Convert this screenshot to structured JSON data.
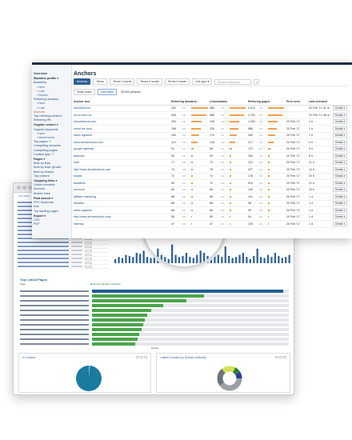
{
  "sidebar": {
    "items": [
      {
        "label": "Overview",
        "type": "head"
      },
      {
        "label": "Backlink profile ▾",
        "type": "head"
      },
      {
        "label": "Backlinks",
        "type": "link"
      },
      {
        "label": "• New",
        "type": "sub"
      },
      {
        "label": "• Lost",
        "type": "sub"
      },
      {
        "label": "• Broken",
        "type": "sub"
      },
      {
        "label": "Referring domains",
        "type": "link"
      },
      {
        "label": "• New",
        "type": "sub"
      },
      {
        "label": "• Lost",
        "type": "sub"
      },
      {
        "label": "Anchors",
        "type": "active"
      },
      {
        "label": "Top referring content",
        "type": "link"
      },
      {
        "label": "Referring IPs",
        "type": "link"
      },
      {
        "label": "Organic search ▾",
        "type": "head"
      },
      {
        "label": "Organic keywords",
        "type": "link"
      },
      {
        "label": "• New",
        "type": "sub"
      },
      {
        "label": "• Movements",
        "type": "sub"
      },
      {
        "label": "Top pages ↗",
        "type": "link"
      },
      {
        "label": "Competing domains",
        "type": "link"
      },
      {
        "label": "Competing pages",
        "type": "link"
      },
      {
        "label": "Content gap ↗",
        "type": "link"
      },
      {
        "label": "Pages ▾",
        "type": "head"
      },
      {
        "label": "Best by links",
        "type": "link"
      },
      {
        "label": "Best by links' growth",
        "type": "link"
      },
      {
        "label": "Best by shares",
        "type": "link"
      },
      {
        "label": "Top content",
        "type": "link"
      },
      {
        "label": "Outgoing links ▾",
        "type": "head"
      },
      {
        "label": "Linked domains",
        "type": "link"
      },
      {
        "label": "Anchors",
        "type": "link"
      },
      {
        "label": "Broken links",
        "type": "link"
      },
      {
        "label": "Paid search ▾",
        "type": "head"
      },
      {
        "label": "PPC keywords",
        "type": "link"
      },
      {
        "label": "Ads",
        "type": "link"
      },
      {
        "label": "Top landing pages",
        "type": "link"
      },
      {
        "label": "Export ▾",
        "type": "head"
      },
      {
        "label": "CSV",
        "type": "link"
      },
      {
        "label": "PDF",
        "type": "link"
      }
    ]
  },
  "main": {
    "title": "Anchors",
    "toolbar": {
      "tabs": [
        "Anchors",
        "Terms",
        "Terms 2 words",
        "Terms 3 words",
        "Terms 4 words"
      ],
      "select": "Link type ▾",
      "search_placeholder": "Search in anchors"
    },
    "subbar": {
      "tabs": [
        "Fresh index",
        "Live index"
      ],
      "count": "35,000 phrases"
    },
    "columns": [
      "Anchor text",
      "Referring domains ↓",
      "Linkdomains",
      "Referring pages",
      "First seen",
      "Last checked",
      ""
    ],
    "rows": [
      {
        "anchor": "shoutmeloud",
        "rd": "332",
        "rd_pct": "1%",
        "rd_frac": 0.95,
        "ld": "466",
        "ld_pct": "1%",
        "ld_frac": 0.9,
        "rp": "9,012",
        "rp_pct": "1%",
        "rp_frac": 0.9,
        "first": "",
        "last": "20 Feb '17",
        "ago": "41 m",
        "details": "Details ▾"
      },
      {
        "anchor": "ua.no-bern.ou",
        "rd": "305",
        "rd_pct": "1%",
        "rd_frac": 0.85,
        "ld": "386",
        "ld_pct": "1%",
        "ld_frac": 0.8,
        "rp": "2,754",
        "rp_pct": "1%",
        "rp_frac": 0.8,
        "first": "",
        "last": "20 Feb '17",
        "ago": "38 m",
        "details": "Details ▾"
      },
      {
        "anchor": "shoutmeloud.com",
        "rd": "200",
        "rd_pct": "1%",
        "rd_frac": 0.6,
        "ld": "245",
        "ld_pct": "1%",
        "ld_frac": 0.55,
        "rp": "1,302",
        "rp_pct": "1%",
        "rp_frac": 0.55,
        "first": "20 Feb '17",
        "last": "",
        "ago": "1 h",
        "details": "Details ▾"
      },
      {
        "anchor": "shout me loud",
        "rd": "196",
        "rd_pct": "1%",
        "rd_frac": 0.55,
        "ld": "230",
        "ld_pct": "1%",
        "ld_frac": 0.5,
        "rp": "566",
        "rp_pct": "1%",
        "rp_frac": 0.5,
        "first": "20 Feb '17",
        "last": "",
        "ago": "1 h",
        "details": "Details ▾"
      },
      {
        "anchor": "harsh agrawal",
        "rd": "150",
        "rd_pct": "1%",
        "rd_frac": 0.45,
        "ld": "170",
        "ld_pct": "1%",
        "ld_frac": 0.4,
        "rp": "280",
        "rp_pct": "1%",
        "rp_frac": 0.4,
        "first": "20 Feb '17",
        "last": "",
        "ago": "2 h",
        "details": "Details ▾"
      },
      {
        "anchor": "www.shoutmeloud.com",
        "rd": "113",
        "rd_pct": "1%",
        "rd_frac": 0.35,
        "ld": "128",
        "ld_pct": "1%",
        "ld_frac": 0.3,
        "rp": "217",
        "rp_pct": "1%",
        "rp_frac": 0.3,
        "first": "20 Feb '17",
        "last": "",
        "ago": "3 h",
        "details": "Details ▾"
      },
      {
        "anchor": "google adsense",
        "rd": "91",
        "rd_pct": "1%",
        "rd_frac": 0.12,
        "ld": "96",
        "ld_pct": "1%",
        "ld_frac": 0.12,
        "rp": "173",
        "rp_pct": "1%",
        "rp_frac": 0.12,
        "first": "20 Feb '17",
        "last": "",
        "ago": "5 h",
        "details": "Details ▾"
      },
      {
        "anchor": "adsense",
        "rd": "85",
        "rd_pct": "1%",
        "rd_frac": 0.1,
        "ld": "95",
        "ld_pct": "1%",
        "ld_frac": 0.1,
        "rp": "155",
        "rp_pct": "1%",
        "rp_frac": 0.1,
        "first": "20 Feb '17",
        "last": "",
        "ago": "8 h",
        "details": "Details ▾"
      },
      {
        "anchor": "here",
        "rd": "77",
        "rd_pct": "1%",
        "rd_frac": 0.09,
        "ld": "79",
        "ld_pct": "1%",
        "ld_frac": 0.09,
        "rp": "113",
        "rp_pct": "1%",
        "rp_frac": 0.09,
        "first": "20 Feb '17",
        "last": "",
        "ago": "11 h",
        "details": "Details ▾"
      },
      {
        "anchor": "http://www.shoutmeloud.com",
        "rd": "74",
        "rd_pct": "1%",
        "rd_frac": 0.09,
        "ld": "76",
        "ld_pct": "1%",
        "ld_frac": 0.09,
        "rp": "327",
        "rp_pct": "1%",
        "rp_frac": 0.09,
        "first": "20 Feb '17",
        "last": "",
        "ago": "12 h",
        "details": "Details ▾"
      },
      {
        "anchor": "stopkit",
        "rd": "72",
        "rd_pct": "1%",
        "rd_frac": 0.08,
        "ld": "74",
        "ld_pct": "1%",
        "ld_frac": 0.08,
        "rp": "178",
        "rp_pct": "1%",
        "rp_frac": 0.08,
        "first": "20 Feb '17",
        "last": "",
        "ago": "20 h",
        "details": "Details ▾"
      },
      {
        "anchor": "backlinks",
        "rd": "69",
        "rd_pct": "1%",
        "rd_frac": 0.08,
        "ld": "70",
        "ld_pct": "1%",
        "ld_frac": 0.08,
        "rp": "510",
        "rp_pct": "1%",
        "rp_frac": 0.08,
        "first": "20 Feb '17",
        "last": "",
        "ago": "21 h",
        "details": "Details ▾"
      },
      {
        "anchor": "semrush",
        "rd": "69",
        "rd_pct": "1%",
        "rd_frac": 0.08,
        "ld": "69",
        "ld_pct": "1%",
        "ld_frac": 0.08,
        "rp": "130",
        "rp_pct": "1%",
        "rp_frac": 0.08,
        "first": "20 Feb '17",
        "last": "",
        "ago": "23 h",
        "details": "Details ▾"
      },
      {
        "anchor": "affiliate marketing",
        "rd": "68",
        "rd_pct": "1%",
        "rd_frac": 0.07,
        "ld": "68",
        "ld_pct": "1%",
        "ld_frac": 0.07,
        "rp": "141",
        "rp_pct": "1%",
        "rp_frac": 0.07,
        "first": "20 Feb '17",
        "last": "",
        "ago": "1 d",
        "details": "Details ▾"
      },
      {
        "anchor": "backlink",
        "rd": "68",
        "rd_pct": "1%",
        "rd_frac": 0.07,
        "ld": "68",
        "ld_pct": "1%",
        "ld_frac": 0.07,
        "rp": "98",
        "rp_pct": "1%",
        "rp_frac": 0.07,
        "first": "20 Feb '17",
        "last": "",
        "ago": "1 d",
        "details": "Details ▾"
      },
      {
        "anchor": "harsh agarwal",
        "rd": "68",
        "rd_pct": "1%",
        "rd_frac": 0.07,
        "ld": "68",
        "ld_pct": "1%",
        "ld_frac": 0.07,
        "rp": "99",
        "rp_pct": "1%",
        "rp_frac": 0.07,
        "first": "20 Feb '17",
        "last": "",
        "ago": "1 d",
        "details": "Details ▾"
      },
      {
        "anchor": "http://www.shoutmeloud.com/",
        "rd": "56",
        "rd_pct": "1%",
        "rd_frac": 0.06,
        "ld": "59",
        "ld_pct": "1%",
        "ld_frac": 0.06,
        "rp": "54",
        "rp_pct": "1%",
        "rp_frac": 0.06,
        "first": "20 Feb '17",
        "last": "",
        "ago": "1 d",
        "details": "Details ▾"
      },
      {
        "anchor": "sitemap",
        "rd": "47",
        "rd_pct": "1%",
        "rd_frac": 0.05,
        "ld": "47",
        "ld_pct": "1%",
        "ld_frac": 0.05,
        "rp": "105",
        "rp_pct": "1%",
        "rp_frac": 0.05,
        "first": "20 Feb '17",
        "last": "",
        "ago": "1 d",
        "details": "Details ▾"
      }
    ]
  },
  "back": {
    "tabs": [
      "Link Views",
      "Backlinks",
      "Referring"
    ],
    "spark": [
      0.2,
      0.3,
      0.25,
      0.4,
      0.35,
      0.3,
      0.5,
      0.45,
      0.6,
      0.3,
      0.25,
      0.35,
      0.7,
      0.4,
      0.3,
      0.2,
      0.9,
      0.4,
      0.3,
      0.35,
      0.5,
      0.3,
      0.25,
      0.4,
      0.6,
      0.5,
      0.35,
      0.3,
      0.45,
      0.4,
      0.3,
      0.8,
      0.35,
      0.25,
      0.3,
      0.4,
      0.5,
      0.3,
      0.2,
      0.35,
      0.7,
      0.3,
      0.25,
      0.4,
      0.3,
      0.5,
      0.35,
      0.25,
      0.3,
      0.4
    ],
    "linked_title": "Top Linked Pages",
    "linked_legend": "Referring domains: Dofollow",
    "linked_col": "Page",
    "bars": [
      {
        "frac": 0.97,
        "color": "blue"
      },
      {
        "frac": 0.57,
        "color": "green"
      },
      {
        "frac": 0.48,
        "color": "green"
      },
      {
        "frac": 0.36,
        "color": "green"
      },
      {
        "frac": 0.3,
        "color": "green"
      },
      {
        "frac": 0.28,
        "color": "green"
      },
      {
        "frac": 0.27,
        "color": "green"
      },
      {
        "frac": 0.26,
        "color": "green"
      },
      {
        "frac": 0.25,
        "color": "green"
      },
      {
        "frac": 0.24,
        "color": "green"
      },
      {
        "frac": 0.23,
        "color": "green"
      },
      {
        "frac": 0.22,
        "color": "green"
      }
    ],
    "bars_more": "Details",
    "pie_left_title": "In Content",
    "pie_right_title": "Linked Domains by Domain Authority",
    "colors": {
      "accent": "#2d5f95",
      "bar_orange": "#f0a050",
      "green": "#4aa64a",
      "pie_teal": "#1a7aa0"
    }
  }
}
